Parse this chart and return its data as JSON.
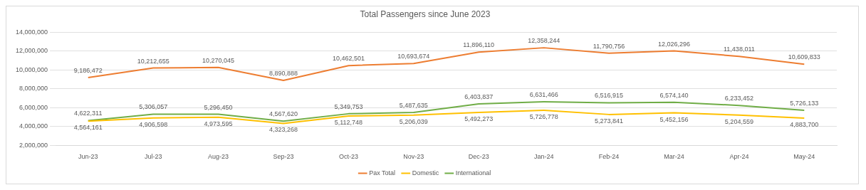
{
  "chart_data": {
    "type": "line",
    "title": "Total Passengers since June 2023",
    "categories": [
      "Jun-23",
      "Jul-23",
      "Aug-23",
      "Sep-23",
      "Oct-23",
      "Nov-23",
      "Dec-23",
      "Jan-24",
      "Feb-24",
      "Mar-24",
      "Apr-24",
      "May-24"
    ],
    "series": [
      {
        "name": "Pax Total",
        "color": "#ed7d31",
        "values": [
          9186472,
          10212655,
          10270045,
          8890888,
          10462501,
          10693674,
          11896110,
          12358244,
          11790756,
          12026296,
          11438011,
          10609833
        ],
        "value_labels": [
          "9,186,472",
          "10,212,655",
          "10,270,045",
          "8,890,888",
          "10,462,501",
          "10,693,674",
          "11,896,110",
          "12,358,244",
          "11,790,756",
          "12,026,296",
          "11,438,011",
          "10,609,833"
        ]
      },
      {
        "name": "Domestic",
        "color": "#ffc000",
        "values": [
          4564161,
          4906598,
          4973595,
          4323268,
          5112748,
          5206039,
          5492273,
          5726778,
          5273841,
          5452156,
          5204559,
          4883700
        ],
        "value_labels": [
          "4,564,161",
          "4,906,598",
          "4,973,595",
          "4,323,268",
          "5,112,748",
          "5,206,039",
          "5,492,273",
          "5,726,778",
          "5,273,841",
          "5,452,156",
          "5,204,559",
          "4,883,700"
        ]
      },
      {
        "name": "International",
        "color": "#70ad47",
        "values": [
          4622311,
          5306057,
          5296450,
          4567620,
          5349753,
          5487635,
          6403837,
          6631466,
          6516915,
          6574140,
          6233452,
          5726133
        ],
        "value_labels": [
          "4,622,311",
          "5,306,057",
          "5,296,450",
          "4,567,620",
          "5,349,753",
          "5,487,635",
          "6,403,837",
          "6,631,466",
          "6,516,915",
          "6,574,140",
          "6,233,452",
          "5,726,133"
        ]
      }
    ],
    "ylim": [
      2000000,
      14000000
    ],
    "yticks": [
      {
        "value": 2000000,
        "label": "2,000,000"
      },
      {
        "value": 4000000,
        "label": "4,000,000"
      },
      {
        "value": 6000000,
        "label": "6,000,000"
      },
      {
        "value": 8000000,
        "label": "8,000,000"
      },
      {
        "value": 10000000,
        "label": "10,000,000"
      },
      {
        "value": 12000000,
        "label": "12,000,000"
      },
      {
        "value": 14000000,
        "label": "14,000,000"
      }
    ],
    "grid": "y",
    "legend": "bottom",
    "marker": "none",
    "line_style": "solid"
  }
}
